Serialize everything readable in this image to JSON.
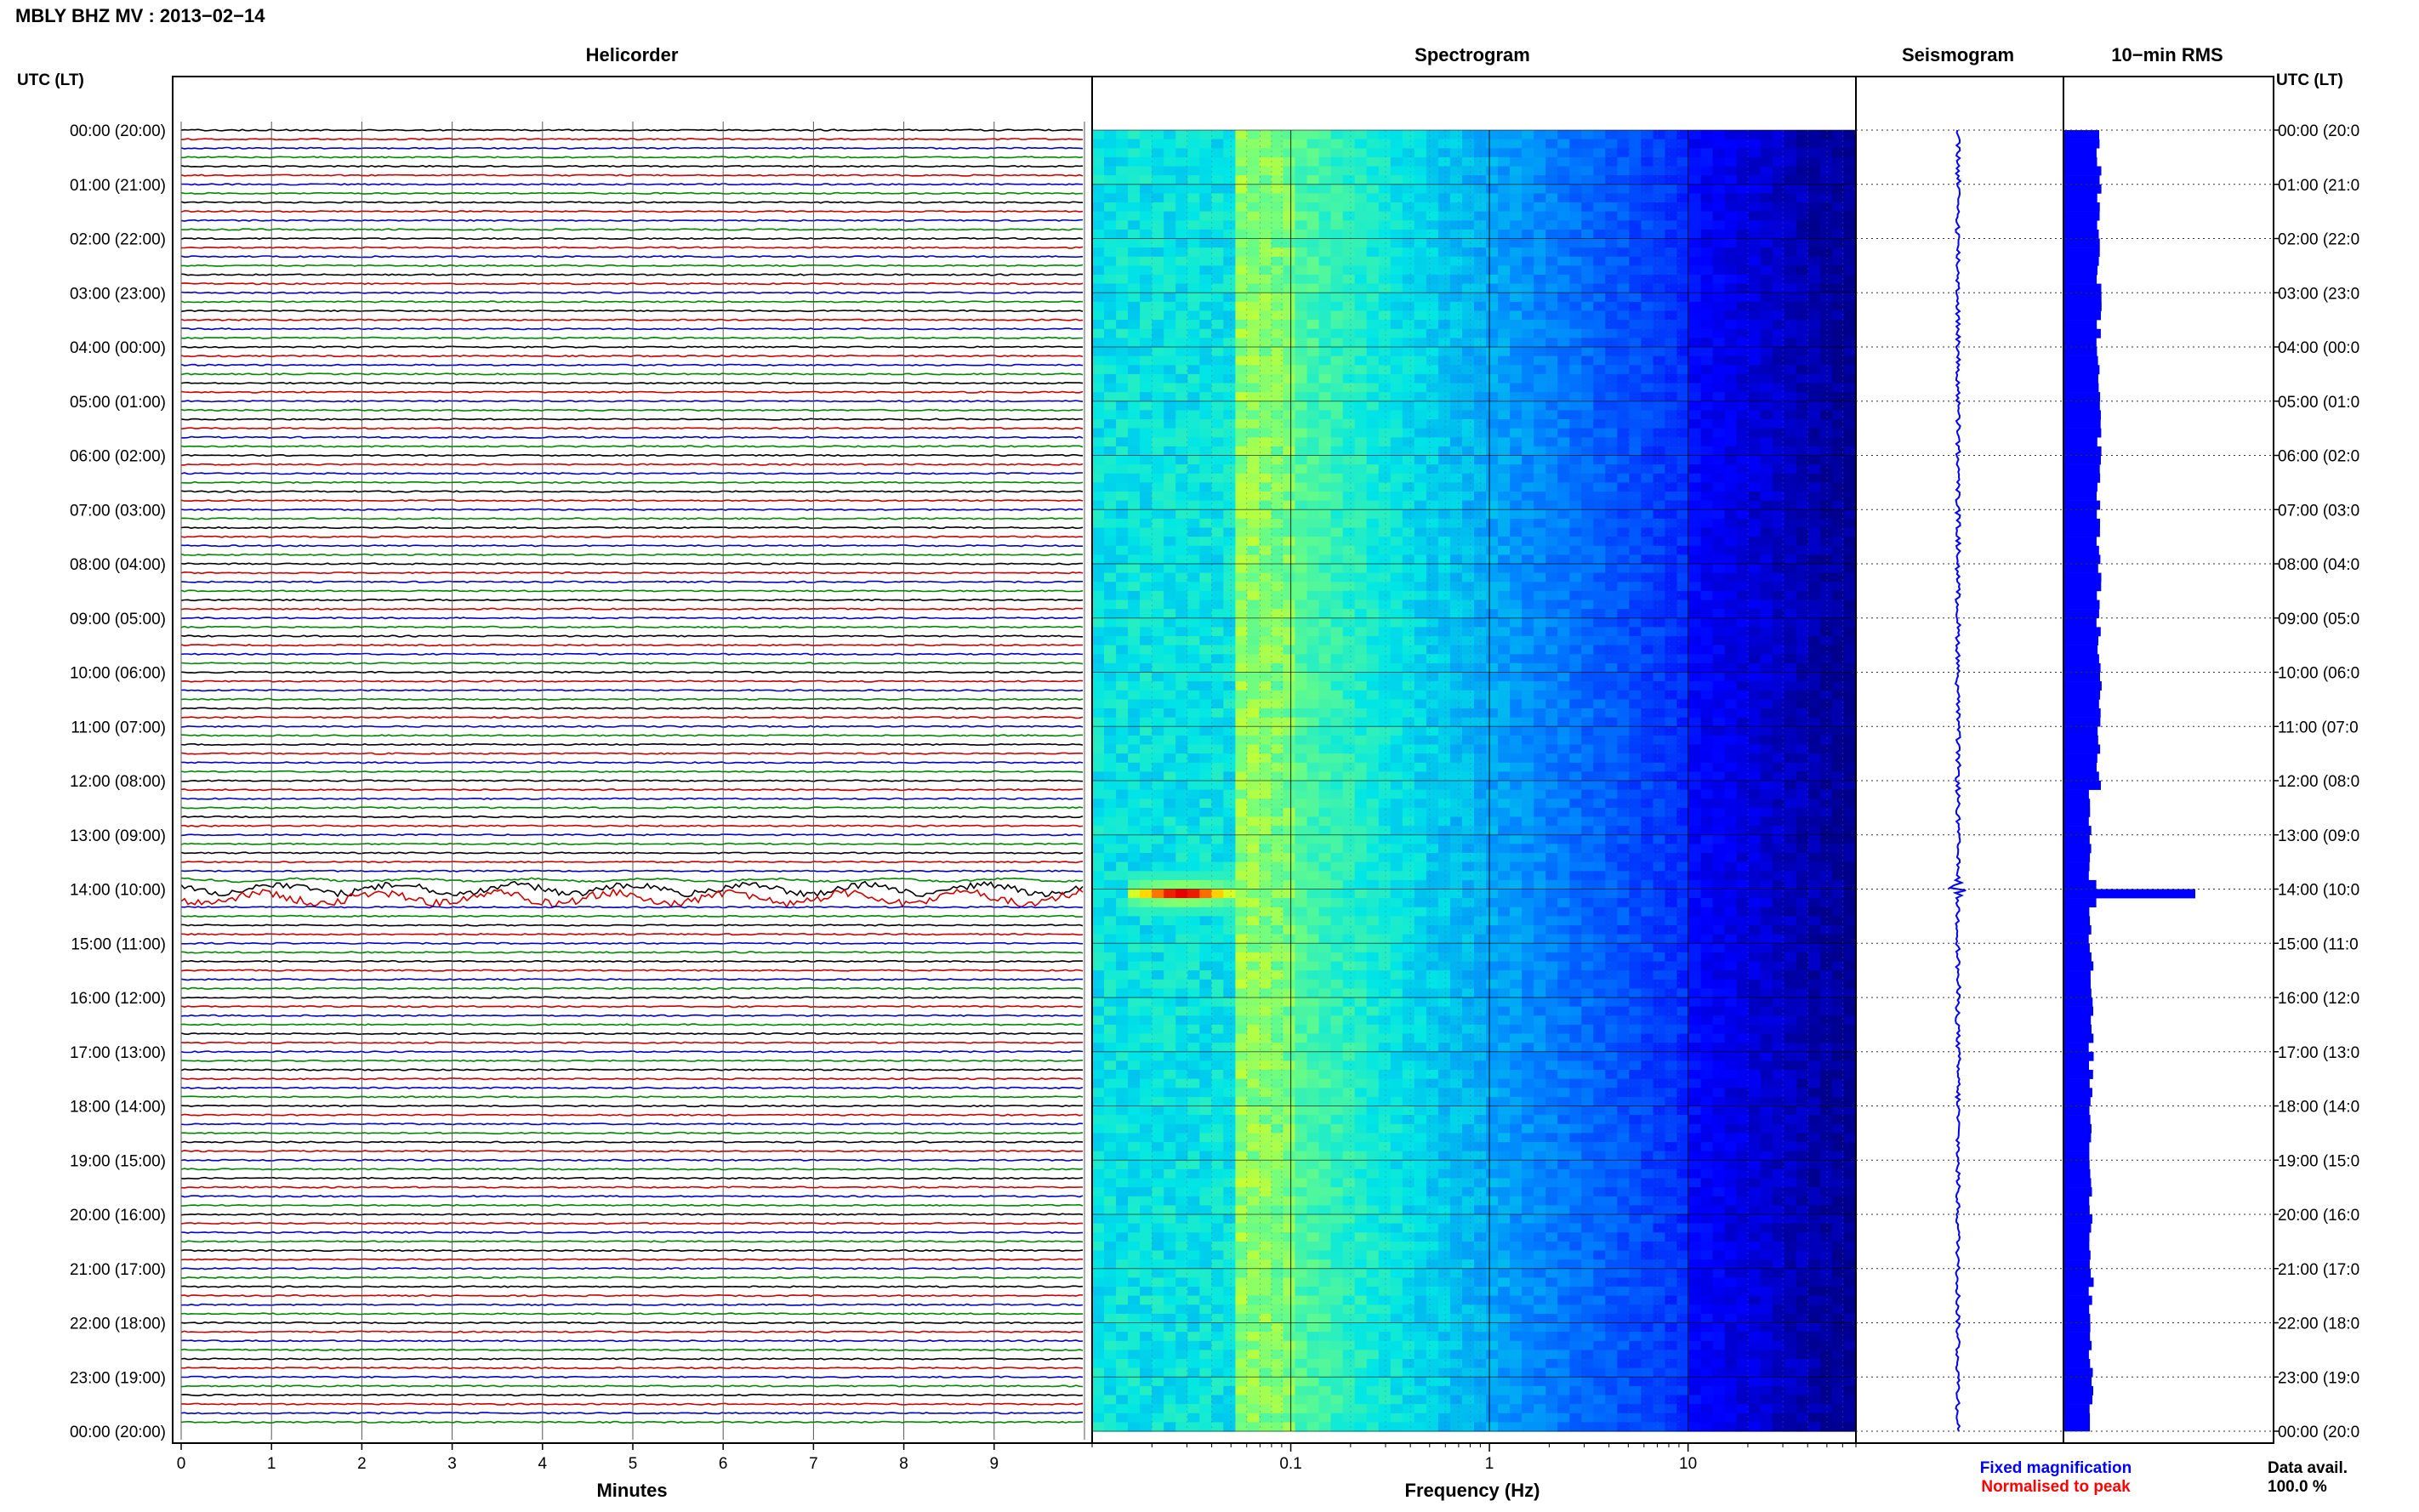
{
  "title": "MBLY BHZ MV : 2013−02−14",
  "panels": {
    "helicorder": "Helicorder",
    "spectrogram": "Spectrogram",
    "seismogram": "Seismogram",
    "rms": "10−min RMS"
  },
  "axis_left_label": "UTC (LT)",
  "axis_right_label": "UTC (LT)",
  "time_labels": [
    "00:00 (20:00)",
    "01:00 (21:00)",
    "02:00 (22:00)",
    "03:00 (23:00)",
    "04:00 (00:00)",
    "05:00 (01:00)",
    "06:00 (02:00)",
    "07:00 (03:00)",
    "08:00 (04:00)",
    "09:00 (05:00)",
    "10:00 (06:00)",
    "11:00 (07:00)",
    "12:00 (08:00)",
    "13:00 (09:00)",
    "14:00 (10:00)",
    "15:00 (11:00)",
    "16:00 (12:00)",
    "17:00 (13:00)",
    "18:00 (14:00)",
    "19:00 (15:00)",
    "20:00 (16:00)",
    "21:00 (17:00)",
    "22:00 (18:00)",
    "23:00 (19:00)",
    "00:00 (20:00)"
  ],
  "right_time_labels": [
    "00:00 (20:0",
    "01:00 (21:0",
    "02:00 (22:0",
    "03:00 (23:0",
    "04:00 (00:0",
    "05:00 (01:0",
    "06:00 (02:0",
    "07:00 (03:0",
    "08:00 (04:0",
    "09:00 (05:0",
    "10:00 (06:0",
    "11:00 (07:0",
    "12:00 (08:0",
    "13:00 (09:0",
    "14:00 (10:0",
    "15:00 (11:0",
    "16:00 (12:0",
    "17:00 (13:0",
    "18:00 (14:0",
    "19:00 (15:0",
    "20:00 (16:0",
    "21:00 (17:0",
    "22:00 (18:0",
    "23:00 (19:0",
    "00:00 (20:0"
  ],
  "minutes_axis": {
    "label": "Minutes",
    "ticks": [
      "0",
      "1",
      "2",
      "3",
      "4",
      "5",
      "6",
      "7",
      "8",
      "9"
    ]
  },
  "frequency_axis": {
    "label": "Frequency (Hz)",
    "ticks": [
      "0.1",
      "1",
      "10"
    ],
    "scale": "log"
  },
  "legend": {
    "fixed": "Fixed magnification",
    "normalised": "Normalised to peak",
    "fixed_color": "#0000ff",
    "normalised_color": "#ff0000"
  },
  "data_avail": {
    "label": "Data avail.",
    "value": "100.0 %"
  },
  "colors": {
    "trace_cycle": [
      "#000000",
      "#cc0000",
      "#0000cc",
      "#008800"
    ],
    "rms_bar": "#0000ff",
    "seismogram": "#0000ff"
  },
  "chart_data": [
    {
      "type": "line",
      "title": "Helicorder",
      "xlabel": "Minutes",
      "x_ticks": [
        0,
        1,
        2,
        3,
        4,
        5,
        6,
        7,
        8,
        9
      ],
      "xlim": [
        0,
        10
      ],
      "rows": 144,
      "row_minutes": 10,
      "event": {
        "start_hour": 13.8,
        "peak_hour": 14.1,
        "end_hour": 14.3
      }
    },
    {
      "type": "heatmap",
      "title": "Spectrogram",
      "xlabel": "Frequency (Hz)",
      "x_ticks": [
        0.1,
        1,
        10
      ],
      "xlim": [
        0.01,
        70
      ],
      "x_scale": "log",
      "colormap": "jet",
      "event": {
        "hour": 14.0,
        "freq_range_hz": [
          0.02,
          0.12
        ]
      }
    },
    {
      "type": "line",
      "title": "Seismogram",
      "event_hour": 14.0
    },
    {
      "type": "bar",
      "title": "10−min RMS",
      "orientation": "horizontal",
      "bins": 144,
      "baseline_level": 0.25,
      "peak": {
        "hour": 14.0,
        "level": 1.0
      }
    }
  ]
}
